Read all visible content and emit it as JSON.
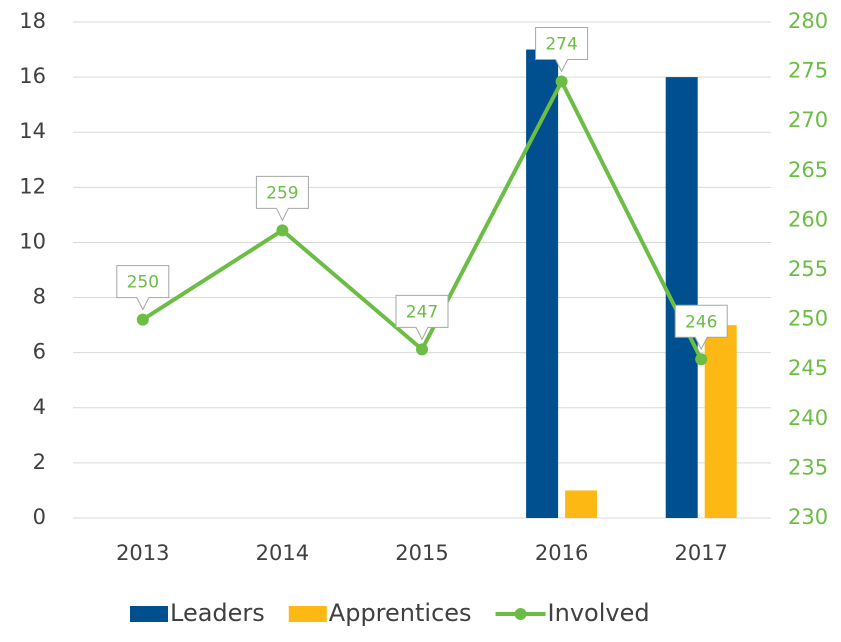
{
  "chart_data": {
    "type": "bar_line",
    "categories": [
      "2013",
      "2014",
      "2015",
      "2016",
      "2017"
    ],
    "series": [
      {
        "name": "Leaders",
        "type": "bar",
        "color": "#00508f",
        "values": [
          0,
          0,
          0,
          17,
          16
        ]
      },
      {
        "name": "Apprentices",
        "type": "bar",
        "color": "#fdb813",
        "values": [
          0,
          0,
          0,
          1,
          7
        ]
      },
      {
        "name": "Involved",
        "type": "line",
        "axis": "y2",
        "color": "#6cbd45",
        "values": [
          250,
          259,
          247,
          274,
          246
        ]
      }
    ],
    "ylim": [
      0,
      18
    ],
    "yticks": [
      0,
      2,
      4,
      6,
      8,
      10,
      12,
      14,
      16,
      18
    ],
    "y2lim": [
      230,
      280
    ],
    "y2ticks": [
      230,
      235,
      240,
      245,
      250,
      255,
      260,
      265,
      270,
      275,
      280
    ],
    "grid": true,
    "legend": "bottom"
  }
}
